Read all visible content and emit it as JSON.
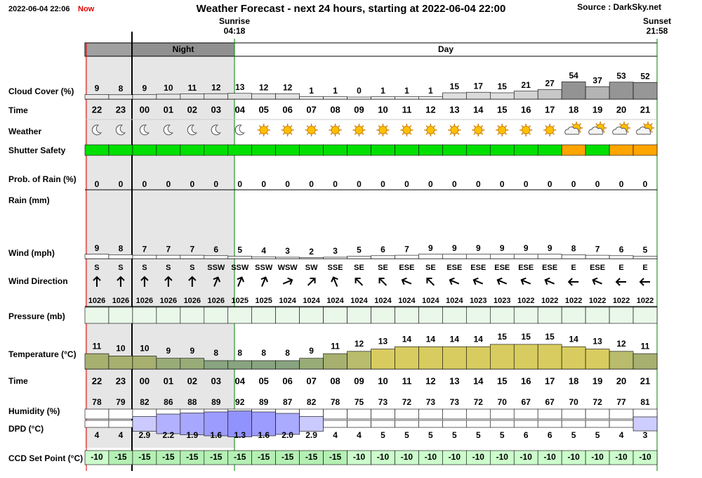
{
  "header": {
    "timestamp": "2022-06-04 22:06",
    "now": "Now",
    "title": "Weather Forecast - next 24 hours, starting at 2022-06-04 22:00",
    "source": "Source : DarkSky.net"
  },
  "sunrise": {
    "label": "Sunrise",
    "time": "04:18"
  },
  "sunset": {
    "label": "Sunset",
    "time": "21:58"
  },
  "periods": {
    "night": "Night",
    "day": "Day"
  },
  "row_labels": {
    "cloud_cover": "Cloud Cover (%)",
    "time": "Time",
    "weather": "Weather",
    "shutter_safety": "Shutter Safety",
    "prob_rain": "Prob. of Rain (%)",
    "rain": "Rain (mm)",
    "wind": "Wind (mph)",
    "wind_direction": "Wind Direction",
    "pressure": "Pressure (mb)",
    "temperature": "Temperature (°C)",
    "time2": "Time",
    "humidity": "Humidity (%)",
    "dpd": "DPD (°C)",
    "ccd_set_point": "CCD Set Point (°C)"
  },
  "hours": [
    "22",
    "23",
    "00",
    "01",
    "02",
    "03",
    "04",
    "05",
    "06",
    "07",
    "08",
    "09",
    "10",
    "11",
    "12",
    "13",
    "14",
    "15",
    "16",
    "17",
    "18",
    "19",
    "20",
    "21"
  ],
  "cloud_cover": [
    9,
    8,
    9,
    10,
    11,
    12,
    13,
    12,
    12,
    1,
    1,
    0,
    1,
    1,
    1,
    15,
    17,
    15,
    21,
    27,
    54,
    37,
    53,
    52
  ],
  "weather": [
    "moon",
    "moon",
    "moon",
    "moon",
    "moon",
    "moon",
    "moon",
    "sun",
    "sun",
    "sun",
    "sun",
    "sun",
    "sun",
    "sun",
    "sun",
    "sun",
    "sun",
    "sun",
    "sun",
    "sun",
    "partly-cloudy",
    "partly-cloudy",
    "partly-cloudy",
    "partly-cloudy"
  ],
  "shutter_safety": [
    "#00e000",
    "#00e000",
    "#00e000",
    "#00e000",
    "#00e000",
    "#00e000",
    "#00e000",
    "#00e000",
    "#00e000",
    "#00e000",
    "#00e000",
    "#00e000",
    "#00e000",
    "#00e000",
    "#00e000",
    "#00e000",
    "#00e000",
    "#00e000",
    "#00e000",
    "#00e000",
    "#ffa500",
    "#00e000",
    "#ffa500",
    "#ffa500"
  ],
  "prob_rain": [
    0,
    0,
    0,
    0,
    0,
    0,
    0,
    0,
    0,
    0,
    0,
    0,
    0,
    0,
    0,
    0,
    0,
    0,
    0,
    0,
    0,
    0,
    0,
    0
  ],
  "wind": [
    9,
    8,
    7,
    7,
    7,
    6,
    5,
    4,
    3,
    2,
    3,
    5,
    6,
    7,
    9,
    9,
    9,
    9,
    9,
    9,
    8,
    7,
    6,
    5
  ],
  "wind_direction": [
    "S",
    "S",
    "S",
    "S",
    "S",
    "SSW",
    "SSW",
    "SSW",
    "WSW",
    "SW",
    "SSE",
    "SE",
    "SE",
    "ESE",
    "SE",
    "ESE",
    "ESE",
    "ESE",
    "ESE",
    "ESE",
    "E",
    "ESE",
    "E",
    "E"
  ],
  "pressure": [
    1026,
    1026,
    1026,
    1026,
    1026,
    1026,
    1025,
    1025,
    1024,
    1024,
    1024,
    1024,
    1024,
    1024,
    1024,
    1024,
    1023,
    1023,
    1022,
    1022,
    1022,
    1022,
    1022,
    1022
  ],
  "temperature": [
    11,
    10,
    10,
    9,
    9,
    8,
    8,
    8,
    8,
    9,
    11,
    12,
    13,
    14,
    14,
    14,
    14,
    15,
    15,
    15,
    14,
    13,
    12,
    11
  ],
  "humidity": [
    78,
    79,
    82,
    86,
    88,
    89,
    92,
    89,
    87,
    82,
    78,
    75,
    73,
    72,
    73,
    73,
    72,
    70,
    67,
    67,
    70,
    72,
    77,
    81
  ],
  "dpd": [
    "4",
    "4",
    "2.9",
    "2.2",
    "1.9",
    "1.6",
    "1.3",
    "1.6",
    "2.0",
    "2.9",
    "4",
    "4",
    "5",
    "5",
    "5",
    "5",
    "5",
    "5",
    "6",
    "6",
    "5",
    "5",
    "4",
    "3"
  ],
  "ccd_set_point": [
    -10,
    -15,
    -15,
    -15,
    -15,
    -15,
    -15,
    -15,
    -15,
    -15,
    -15,
    -10,
    -10,
    -10,
    -10,
    -10,
    -10,
    -10,
    -10,
    -10,
    -10,
    -10,
    -10,
    -10
  ]
}
